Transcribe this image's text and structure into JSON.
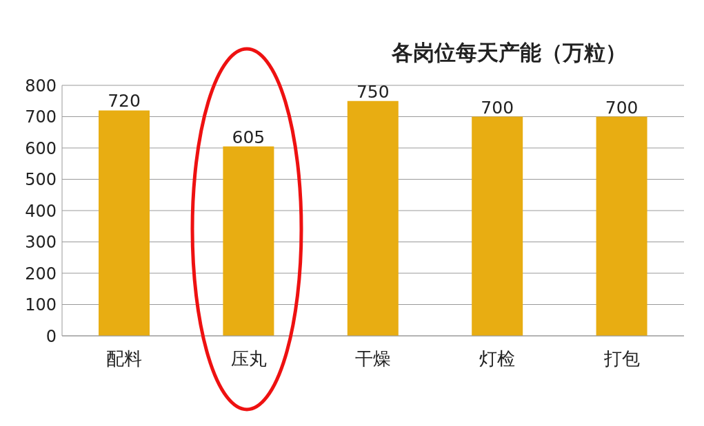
{
  "chart_data": {
    "type": "bar",
    "title": "各岗位每天产能（万粒）",
    "categories": [
      "配料",
      "压丸",
      "干燥",
      "灯检",
      "打包"
    ],
    "values": [
      720,
      605,
      750,
      700,
      700
    ],
    "color": "#e8ad12",
    "ylim": [
      0,
      800
    ],
    "yticks": [
      0,
      100,
      200,
      300,
      400,
      500,
      600,
      700,
      800
    ],
    "grid": "y",
    "data_labels": true
  }
}
